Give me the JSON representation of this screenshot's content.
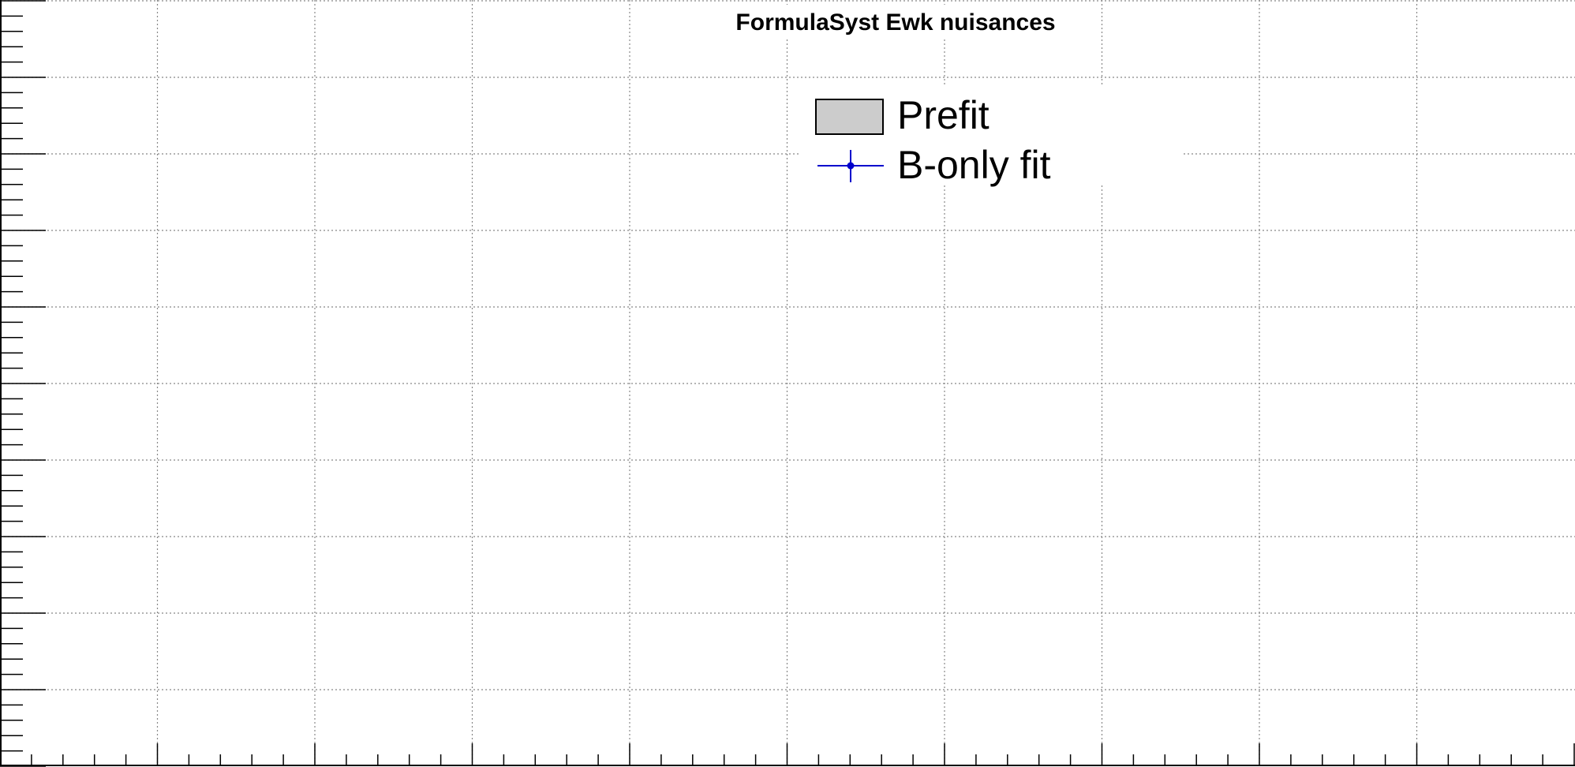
{
  "chart_data": {
    "type": "scatter",
    "title": "FormulaSyst Ewk nuisances",
    "xlabel": "",
    "ylabel": "",
    "grid": true,
    "legend_position": "top-center",
    "legend": [
      {
        "label": "Prefit",
        "style": "filled-box",
        "fill_color": "#cccccc",
        "line_color": "#000000"
      },
      {
        "label": "B-only fit",
        "style": "marker-with-error-bars",
        "color": "#0000cc"
      }
    ],
    "series": [
      {
        "name": "Prefit",
        "values": []
      },
      {
        "name": "B-only fit",
        "values": []
      }
    ]
  }
}
